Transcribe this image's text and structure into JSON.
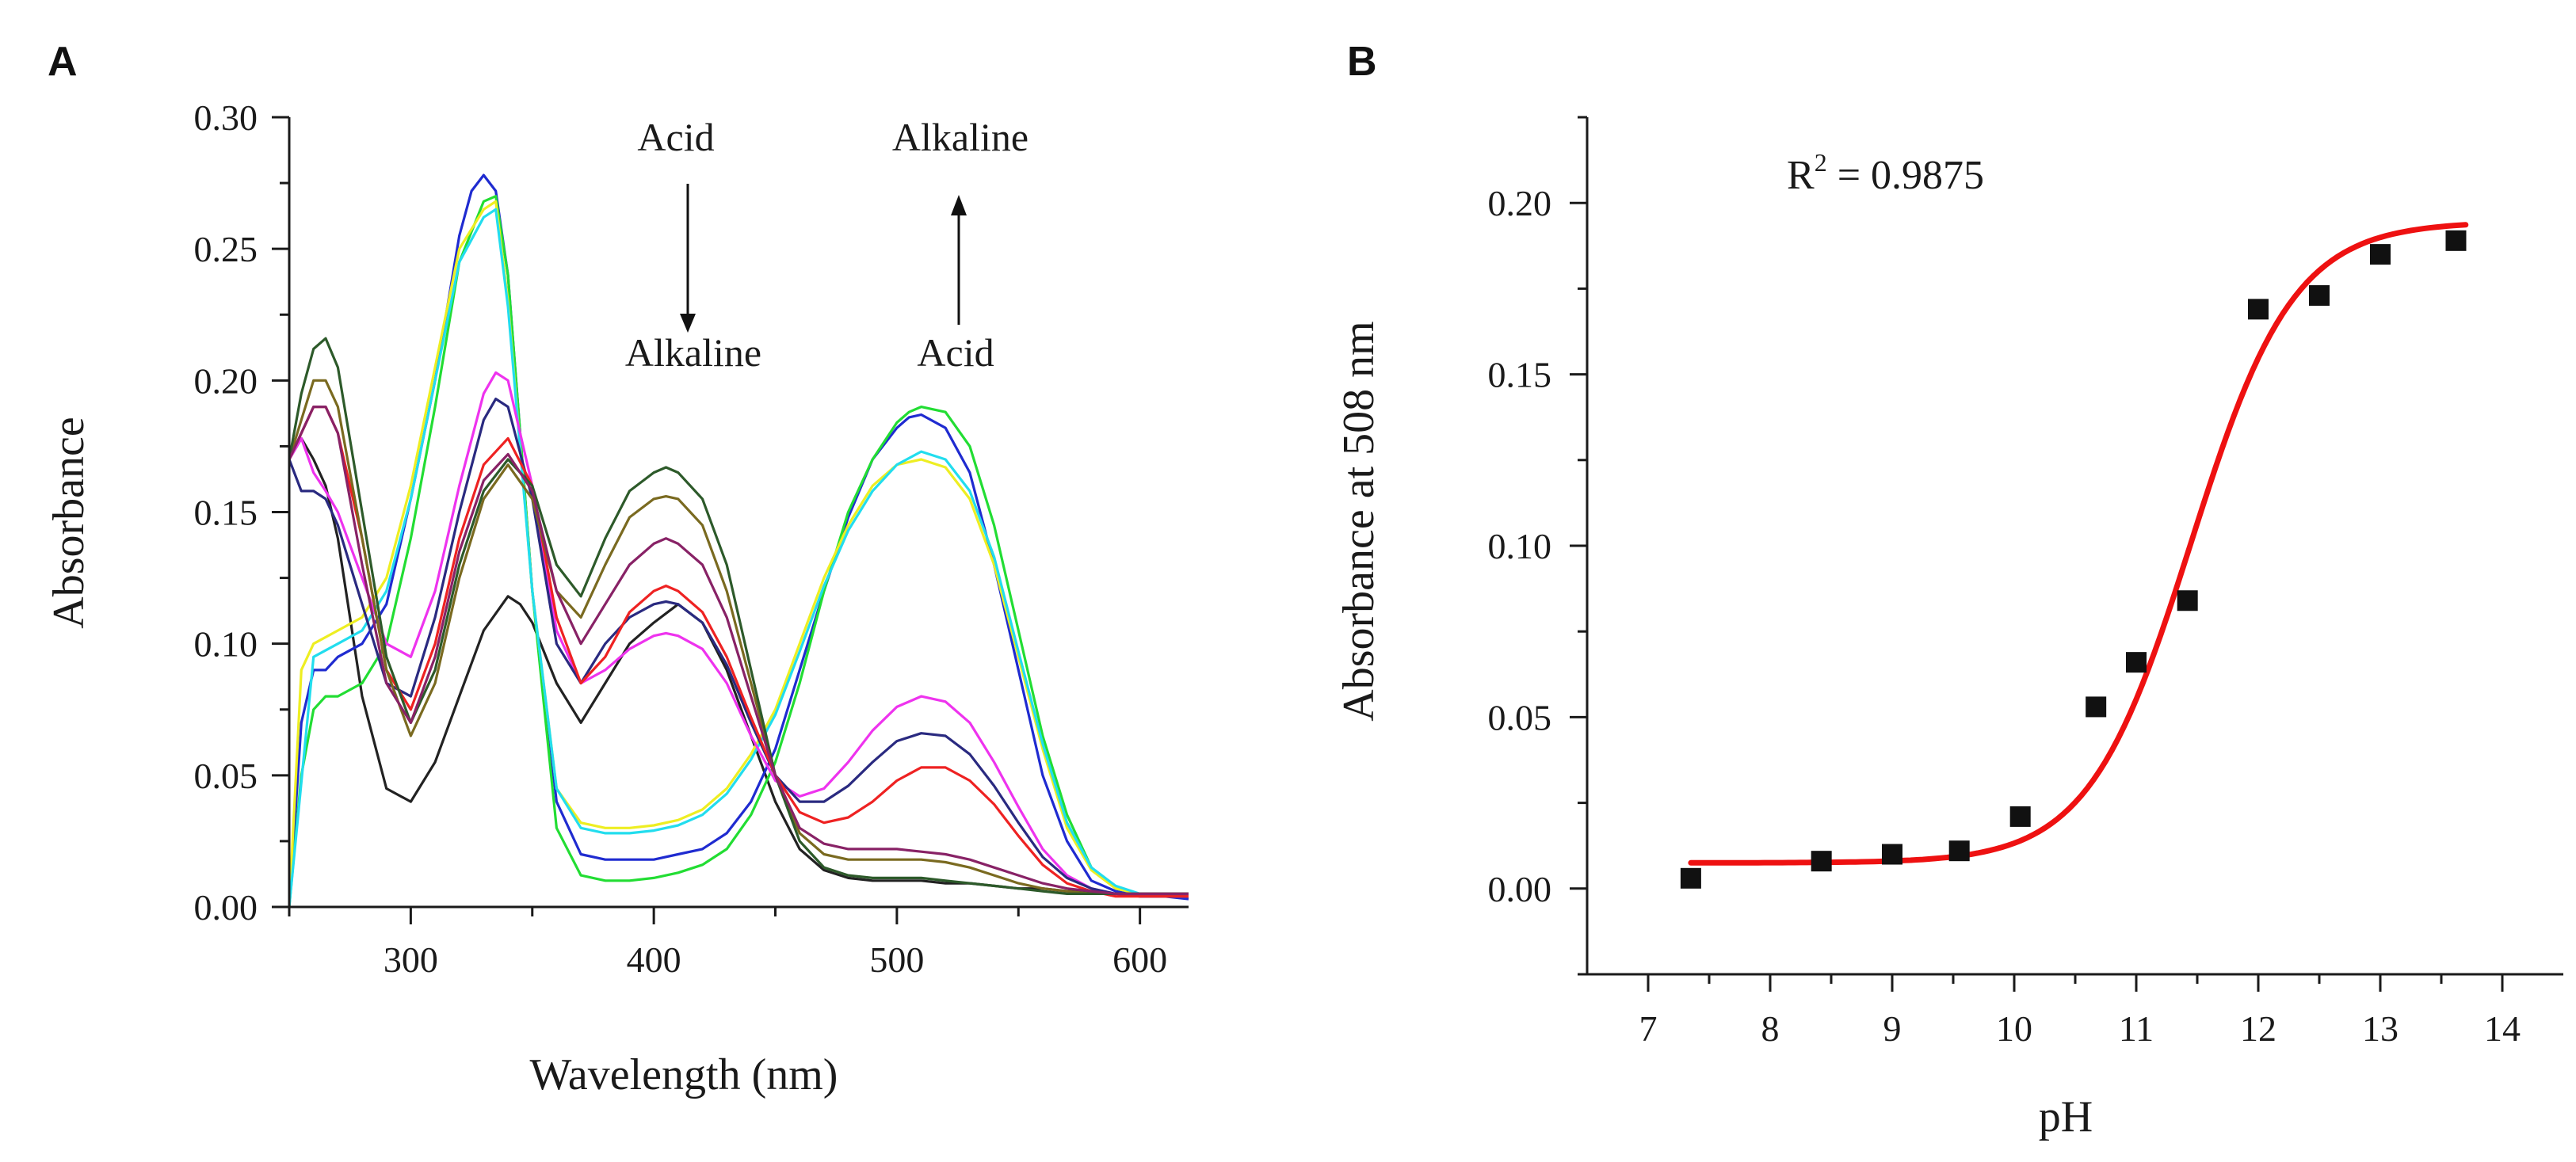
{
  "colors": {
    "axis": "#1a1a1a",
    "fit": "#ee1111",
    "points": "#111111"
  },
  "chart_data": [
    {
      "panel_label": "A",
      "type": "line",
      "xlabel": "Wavelength (nm)",
      "ylabel": "Absorbance",
      "xlim": [
        250,
        620
      ],
      "ylim": [
        0,
        0.3
      ],
      "xticks": [
        "300",
        "400",
        "500",
        "600"
      ],
      "yticks": [
        "0.00",
        "0.05",
        "0.10",
        "0.15",
        "0.20",
        "0.25",
        "0.30"
      ],
      "annotations": {
        "left_top": "Acid",
        "left_bottom": "Alkaline",
        "right_top": "Alkaline",
        "right_bottom": "Acid"
      },
      "series": [
        {
          "name": "black",
          "color": "#222222",
          "x": [
            250,
            255,
            260,
            265,
            270,
            280,
            290,
            300,
            310,
            320,
            330,
            340,
            345,
            350,
            360,
            370,
            380,
            390,
            400,
            410,
            420,
            430,
            440,
            450,
            460,
            470,
            480,
            490,
            500,
            510,
            520,
            530,
            540,
            550,
            560,
            570,
            580,
            590,
            600,
            610,
            620
          ],
          "y": [
            0.17,
            0.178,
            0.17,
            0.16,
            0.14,
            0.08,
            0.045,
            0.04,
            0.055,
            0.08,
            0.105,
            0.118,
            0.115,
            0.108,
            0.085,
            0.07,
            0.085,
            0.1,
            0.108,
            0.115,
            0.108,
            0.09,
            0.065,
            0.04,
            0.022,
            0.014,
            0.011,
            0.01,
            0.01,
            0.01,
            0.009,
            0.009,
            0.008,
            0.007,
            0.007,
            0.006,
            0.006,
            0.005,
            0.005,
            0.005,
            0.005
          ]
        },
        {
          "name": "blue",
          "color": "#1f2bd0",
          "x": [
            250,
            255,
            260,
            265,
            270,
            280,
            290,
            300,
            310,
            320,
            325,
            330,
            335,
            340,
            350,
            360,
            370,
            380,
            390,
            400,
            410,
            420,
            430,
            440,
            450,
            460,
            470,
            480,
            490,
            500,
            505,
            510,
            520,
            530,
            540,
            550,
            560,
            570,
            580,
            590,
            600,
            610,
            620
          ],
          "y": [
            0.0,
            0.07,
            0.09,
            0.09,
            0.095,
            0.1,
            0.115,
            0.155,
            0.2,
            0.255,
            0.272,
            0.278,
            0.272,
            0.24,
            0.12,
            0.04,
            0.02,
            0.018,
            0.018,
            0.018,
            0.02,
            0.022,
            0.028,
            0.04,
            0.06,
            0.09,
            0.12,
            0.148,
            0.17,
            0.182,
            0.186,
            0.187,
            0.182,
            0.165,
            0.13,
            0.09,
            0.05,
            0.025,
            0.01,
            0.006,
            0.004,
            0.004,
            0.003
          ]
        },
        {
          "name": "green",
          "color": "#22dd33",
          "x": [
            250,
            255,
            260,
            265,
            270,
            280,
            290,
            300,
            310,
            320,
            330,
            335,
            340,
            350,
            360,
            370,
            380,
            390,
            400,
            410,
            420,
            430,
            440,
            450,
            460,
            470,
            480,
            490,
            500,
            505,
            510,
            520,
            530,
            540,
            550,
            560,
            570,
            580,
            590,
            600,
            610,
            620
          ],
          "y": [
            0.0,
            0.05,
            0.075,
            0.08,
            0.08,
            0.085,
            0.1,
            0.14,
            0.19,
            0.245,
            0.268,
            0.27,
            0.24,
            0.12,
            0.03,
            0.012,
            0.01,
            0.01,
            0.011,
            0.013,
            0.016,
            0.022,
            0.035,
            0.055,
            0.085,
            0.12,
            0.15,
            0.17,
            0.184,
            0.188,
            0.19,
            0.188,
            0.175,
            0.145,
            0.105,
            0.065,
            0.035,
            0.015,
            0.007,
            0.005,
            0.004,
            0.004
          ]
        },
        {
          "name": "yellow",
          "color": "#eeee22",
          "x": [
            250,
            255,
            260,
            270,
            280,
            290,
            300,
            310,
            320,
            330,
            335,
            340,
            350,
            360,
            370,
            380,
            390,
            400,
            410,
            420,
            430,
            440,
            450,
            460,
            470,
            480,
            490,
            500,
            510,
            520,
            530,
            540,
            550,
            560,
            570,
            580,
            590,
            600,
            610,
            620
          ],
          "y": [
            0.0,
            0.09,
            0.1,
            0.105,
            0.11,
            0.125,
            0.16,
            0.205,
            0.25,
            0.265,
            0.268,
            0.23,
            0.12,
            0.045,
            0.032,
            0.03,
            0.03,
            0.031,
            0.033,
            0.037,
            0.045,
            0.058,
            0.075,
            0.1,
            0.125,
            0.145,
            0.16,
            0.168,
            0.17,
            0.167,
            0.155,
            0.13,
            0.095,
            0.06,
            0.03,
            0.014,
            0.007,
            0.005,
            0.004,
            0.004
          ]
        },
        {
          "name": "cyan",
          "color": "#22ddee",
          "x": [
            250,
            260,
            270,
            280,
            290,
            300,
            310,
            320,
            330,
            335,
            340,
            350,
            360,
            370,
            380,
            390,
            400,
            410,
            420,
            430,
            440,
            450,
            460,
            470,
            480,
            490,
            500,
            510,
            520,
            530,
            540,
            550,
            560,
            570,
            580,
            590,
            600,
            610,
            620
          ],
          "y": [
            0.0,
            0.095,
            0.1,
            0.105,
            0.12,
            0.155,
            0.2,
            0.245,
            0.262,
            0.265,
            0.228,
            0.12,
            0.045,
            0.03,
            0.028,
            0.028,
            0.029,
            0.031,
            0.035,
            0.043,
            0.056,
            0.073,
            0.097,
            0.122,
            0.143,
            0.158,
            0.168,
            0.173,
            0.17,
            0.158,
            0.133,
            0.097,
            0.062,
            0.032,
            0.015,
            0.008,
            0.005,
            0.004,
            0.004
          ]
        },
        {
          "name": "magenta",
          "color": "#ee33ee",
          "x": [
            250,
            255,
            260,
            265,
            270,
            280,
            290,
            300,
            310,
            320,
            330,
            335,
            340,
            350,
            360,
            370,
            380,
            390,
            400,
            405,
            410,
            420,
            430,
            440,
            450,
            460,
            470,
            480,
            490,
            500,
            510,
            520,
            530,
            540,
            550,
            560,
            570,
            580,
            590,
            600,
            610,
            620
          ],
          "y": [
            0.17,
            0.178,
            0.165,
            0.158,
            0.15,
            0.125,
            0.1,
            0.095,
            0.12,
            0.16,
            0.195,
            0.203,
            0.2,
            0.16,
            0.105,
            0.085,
            0.09,
            0.098,
            0.103,
            0.104,
            0.103,
            0.098,
            0.085,
            0.065,
            0.048,
            0.042,
            0.045,
            0.055,
            0.067,
            0.076,
            0.08,
            0.078,
            0.07,
            0.055,
            0.038,
            0.022,
            0.012,
            0.007,
            0.005,
            0.004,
            0.004,
            0.004
          ]
        },
        {
          "name": "navy",
          "color": "#2a2a80",
          "x": [
            250,
            255,
            260,
            265,
            270,
            280,
            290,
            300,
            310,
            320,
            330,
            335,
            340,
            350,
            360,
            370,
            380,
            390,
            400,
            405,
            410,
            420,
            430,
            440,
            450,
            460,
            470,
            480,
            490,
            500,
            510,
            520,
            530,
            540,
            550,
            560,
            570,
            580,
            590,
            600,
            610,
            620
          ],
          "y": [
            0.17,
            0.158,
            0.158,
            0.155,
            0.145,
            0.115,
            0.085,
            0.08,
            0.11,
            0.15,
            0.185,
            0.193,
            0.19,
            0.155,
            0.1,
            0.085,
            0.1,
            0.11,
            0.115,
            0.116,
            0.115,
            0.108,
            0.092,
            0.07,
            0.05,
            0.04,
            0.04,
            0.046,
            0.055,
            0.063,
            0.066,
            0.065,
            0.058,
            0.046,
            0.032,
            0.019,
            0.011,
            0.007,
            0.005,
            0.004,
            0.004,
            0.004
          ]
        },
        {
          "name": "red",
          "color": "#ee2222",
          "x": [
            250,
            255,
            260,
            265,
            270,
            280,
            290,
            300,
            310,
            320,
            330,
            340,
            350,
            360,
            370,
            380,
            390,
            400,
            405,
            410,
            420,
            430,
            440,
            450,
            460,
            470,
            480,
            490,
            500,
            510,
            520,
            530,
            540,
            550,
            560,
            570,
            580,
            590,
            600,
            610,
            620
          ],
          "y": [
            0.17,
            0.18,
            0.19,
            0.19,
            0.18,
            0.14,
            0.09,
            0.075,
            0.1,
            0.14,
            0.168,
            0.178,
            0.16,
            0.11,
            0.085,
            0.095,
            0.112,
            0.12,
            0.122,
            0.12,
            0.112,
            0.095,
            0.072,
            0.05,
            0.036,
            0.032,
            0.034,
            0.04,
            0.048,
            0.053,
            0.053,
            0.048,
            0.039,
            0.027,
            0.016,
            0.009,
            0.006,
            0.004,
            0.004,
            0.004,
            0.004
          ]
        },
        {
          "name": "olive",
          "color": "#7a6a20",
          "x": [
            250,
            255,
            260,
            265,
            270,
            280,
            290,
            300,
            310,
            320,
            330,
            340,
            350,
            360,
            370,
            380,
            390,
            400,
            405,
            410,
            420,
            430,
            440,
            450,
            460,
            470,
            480,
            490,
            500,
            510,
            520,
            530,
            540,
            550,
            560,
            570,
            580,
            590,
            600,
            610,
            620
          ],
          "y": [
            0.17,
            0.185,
            0.2,
            0.2,
            0.19,
            0.14,
            0.09,
            0.065,
            0.085,
            0.125,
            0.155,
            0.168,
            0.155,
            0.12,
            0.11,
            0.13,
            0.148,
            0.155,
            0.156,
            0.155,
            0.145,
            0.12,
            0.085,
            0.05,
            0.028,
            0.02,
            0.018,
            0.018,
            0.018,
            0.018,
            0.017,
            0.015,
            0.012,
            0.009,
            0.007,
            0.006,
            0.005,
            0.005,
            0.005,
            0.005,
            0.005
          ]
        },
        {
          "name": "darkgreen",
          "color": "#2d5a2a",
          "x": [
            250,
            255,
            260,
            265,
            270,
            280,
            290,
            300,
            310,
            320,
            330,
            340,
            350,
            360,
            370,
            380,
            390,
            400,
            405,
            410,
            420,
            430,
            440,
            450,
            460,
            470,
            480,
            490,
            500,
            510,
            520,
            530,
            540,
            550,
            560,
            570,
            580,
            590,
            600,
            610,
            620
          ],
          "y": [
            0.17,
            0.195,
            0.212,
            0.216,
            0.205,
            0.15,
            0.095,
            0.07,
            0.09,
            0.13,
            0.158,
            0.17,
            0.16,
            0.13,
            0.118,
            0.14,
            0.158,
            0.165,
            0.167,
            0.165,
            0.155,
            0.13,
            0.09,
            0.05,
            0.025,
            0.015,
            0.012,
            0.011,
            0.011,
            0.011,
            0.01,
            0.009,
            0.008,
            0.007,
            0.006,
            0.005,
            0.005,
            0.005,
            0.005,
            0.005,
            0.005
          ]
        },
        {
          "name": "purple",
          "color": "#882266",
          "x": [
            250,
            255,
            260,
            265,
            270,
            280,
            290,
            300,
            310,
            320,
            330,
            340,
            350,
            360,
            370,
            380,
            390,
            400,
            405,
            410,
            420,
            430,
            440,
            450,
            460,
            470,
            480,
            490,
            500,
            510,
            520,
            530,
            540,
            550,
            560,
            570,
            580,
            590,
            600,
            610,
            620
          ],
          "y": [
            0.17,
            0.18,
            0.19,
            0.19,
            0.18,
            0.13,
            0.085,
            0.07,
            0.095,
            0.135,
            0.162,
            0.172,
            0.158,
            0.12,
            0.1,
            0.115,
            0.13,
            0.138,
            0.14,
            0.138,
            0.13,
            0.11,
            0.08,
            0.05,
            0.03,
            0.024,
            0.022,
            0.022,
            0.022,
            0.021,
            0.02,
            0.018,
            0.015,
            0.012,
            0.009,
            0.007,
            0.006,
            0.005,
            0.005,
            0.005,
            0.005
          ]
        }
      ]
    },
    {
      "panel_label": "B",
      "type": "scatter",
      "xlabel": "pH",
      "ylabel": "Absorbance at 508 nm",
      "xlim": [
        6.5,
        14.5
      ],
      "ylim": [
        -0.025,
        0.225
      ],
      "xticks": [
        "7",
        "8",
        "9",
        "10",
        "11",
        "12",
        "13",
        "14"
      ],
      "yticks": [
        "0.00",
        "0.05",
        "0.10",
        "0.15",
        "0.20"
      ],
      "annotation": {
        "r2_prefix": "R",
        "r2_sup": "2",
        "r2_value": " = 0.9875"
      },
      "points": {
        "x": [
          7.35,
          8.42,
          9.0,
          9.55,
          10.05,
          10.67,
          11.0,
          11.42,
          12.0,
          12.5,
          13.0,
          13.62
        ],
        "y": [
          0.003,
          0.008,
          0.01,
          0.011,
          0.021,
          0.053,
          0.066,
          0.084,
          0.169,
          0.173,
          0.185,
          0.189
        ]
      },
      "fit": {
        "model": "sigmoid",
        "bottom": 0.0075,
        "top": 0.1945,
        "x50": 11.45,
        "slope": 0.42,
        "x_range": [
          7.35,
          13.7
        ]
      }
    }
  ]
}
